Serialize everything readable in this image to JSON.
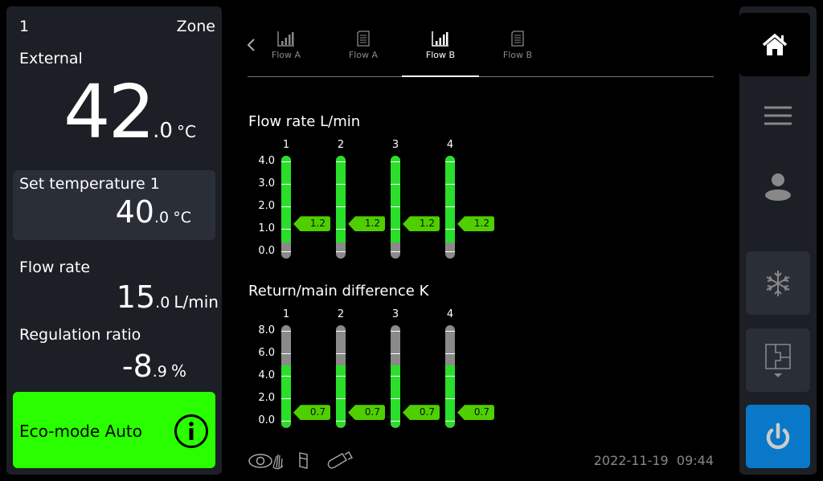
{
  "left": {
    "zone_number": "1",
    "zone_label": "Zone",
    "external_label": "External",
    "external_int": "42",
    "external_dec": ".0",
    "external_unit": "°C",
    "set_label": "Set temperature 1",
    "set_int": "40",
    "set_dec": ".0",
    "set_unit": "°C",
    "flow_label": "Flow rate",
    "flow_int": "15",
    "flow_dec": ".0",
    "flow_unit": "L/min",
    "reg_label": "Regulation ratio",
    "reg_int": "-8",
    "reg_dec": ".9",
    "reg_unit": "%",
    "eco_label": "Eco-mode Auto",
    "eco_color": "#2aff00"
  },
  "tabs": [
    {
      "label": "Flow A",
      "icon": "bar-chart-icon",
      "active": false
    },
    {
      "label": "Flow A",
      "icon": "document-icon",
      "active": false
    },
    {
      "label": "Flow B",
      "icon": "bar-chart-icon",
      "active": true
    },
    {
      "label": "Flow B",
      "icon": "document-icon",
      "active": false
    }
  ],
  "chart_data": [
    {
      "type": "bar",
      "title": "Flow rate L/min",
      "categories": [
        "1",
        "2",
        "3",
        "4"
      ],
      "ticks": [
        "4.0",
        "3.0",
        "2.0",
        "1.0",
        "0.0"
      ],
      "ylim": [
        0,
        4
      ],
      "values": [
        1.2,
        1.2,
        1.2,
        1.2
      ],
      "value_labels": [
        "1.2",
        "1.2",
        "1.2",
        "1.2"
      ],
      "ok_range": [
        0.4,
        4.25
      ],
      "ok_color": "#2adf2a",
      "out_color": "#8a8a8a"
    },
    {
      "type": "bar",
      "title": "Return/main difference K",
      "categories": [
        "1",
        "2",
        "3",
        "4"
      ],
      "ticks": [
        "8.0",
        "6.0",
        "4.0",
        "2.0",
        "0.0"
      ],
      "ylim": [
        0,
        8
      ],
      "values": [
        0.7,
        0.7,
        0.7,
        0.7
      ],
      "value_labels": [
        "0.7",
        "0.7",
        "0.7",
        "0.7"
      ],
      "ok_range": [
        -0.6,
        4.9
      ],
      "ok_color": "#2adf2a",
      "out_color": "#8a8a8a"
    }
  ],
  "footer": {
    "date": "2022-11-19",
    "time": "09:44",
    "icons": [
      "eye-hand-icon",
      "phone-icon",
      "usb-stick-icon"
    ]
  },
  "sidebar": {
    "items": [
      "home-icon",
      "menu-icon",
      "user-icon",
      "snowflake-icon",
      "floorplan-icon",
      "power-icon"
    ],
    "power_color": "#0a78c8"
  }
}
